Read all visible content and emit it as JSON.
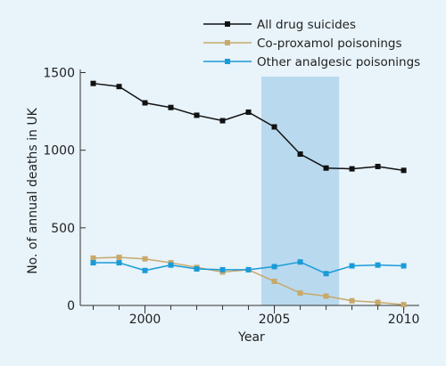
{
  "chart_data": {
    "type": "line",
    "title": "",
    "xlabel": "Year",
    "ylabel": "No. of annual deaths in UK",
    "xlim": [
      1997.5,
      2010.6
    ],
    "ylim": [
      0,
      1520
    ],
    "x_ticks": [
      2000,
      2005,
      2010
    ],
    "x_tick_labels": [
      "2000",
      "2005",
      "2010"
    ],
    "y_ticks": [
      0,
      500,
      1000,
      1500
    ],
    "y_tick_labels": [
      "0",
      "500",
      "1000",
      "1500"
    ],
    "highlight_region": {
      "x_start": 2004.5,
      "x_end": 2007.5,
      "color": "#b9d9ef"
    },
    "background": "#e8f3fa",
    "legend_position": "top-right",
    "x": [
      1998,
      1999,
      2000,
      2001,
      2002,
      2003,
      2004,
      2005,
      2006,
      2007,
      2008,
      2009,
      2010
    ],
    "series": [
      {
        "name": "All drug suicides",
        "color": "#111111",
        "values": [
          1430,
          1410,
          1305,
          1275,
          1225,
          1190,
          1245,
          1150,
          975,
          885,
          880,
          895,
          870
        ]
      },
      {
        "name": "Co-proxamol poisonings",
        "color": "#c8a96a",
        "values": [
          305,
          310,
          300,
          275,
          245,
          215,
          230,
          155,
          80,
          60,
          30,
          20,
          5
        ]
      },
      {
        "name": "Other analgesic poisonings",
        "color": "#1a9bd7",
        "values": [
          275,
          275,
          225,
          260,
          235,
          230,
          230,
          250,
          280,
          205,
          255,
          260,
          255
        ]
      }
    ]
  }
}
